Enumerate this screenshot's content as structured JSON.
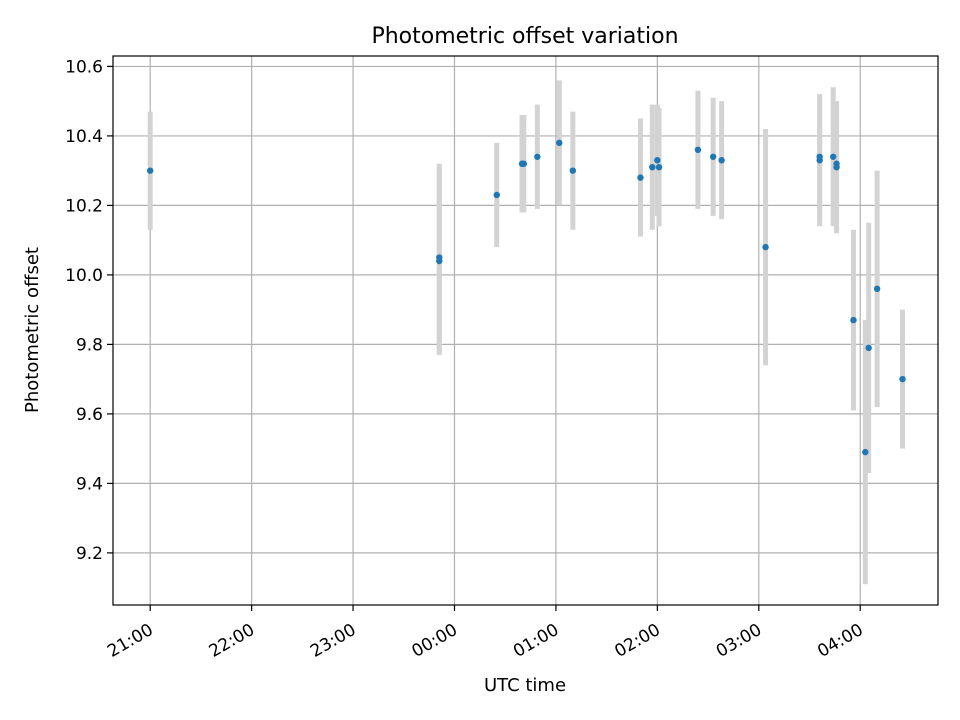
{
  "chart_data": {
    "type": "scatter",
    "title": "Photometric offset variation",
    "xlabel": "UTC time",
    "ylabel": "Photometric offset",
    "xlim": [
      "20:38",
      "04:46"
    ],
    "ylim": [
      9.05,
      10.63
    ],
    "grid": true,
    "legend": "none",
    "x_ticks": [
      "21:00",
      "22:00",
      "23:00",
      "00:00",
      "01:00",
      "02:00",
      "03:00",
      "04:00"
    ],
    "y_ticks": [
      9.2,
      9.4,
      9.6,
      9.8,
      10.0,
      10.2,
      10.4,
      10.6
    ],
    "y_tick_labels": [
      "9.2",
      "9.4",
      "9.6",
      "9.8",
      "10.0",
      "10.2",
      "10.4",
      "10.6"
    ],
    "point_color": "#1f77b4",
    "errorbar_color": "#d3d3d3",
    "points": [
      {
        "x": "21:00",
        "y": 10.3,
        "yerr": 0.17
      },
      {
        "x": "23:51",
        "y": 10.04,
        "yerr": 0.27
      },
      {
        "x": "23:51",
        "y": 10.05,
        "yerr": 0.27
      },
      {
        "x": "00:25",
        "y": 10.23,
        "yerr": 0.15
      },
      {
        "x": "00:40",
        "y": 10.32,
        "yerr": 0.14
      },
      {
        "x": "00:40",
        "y": 10.32,
        "yerr": 0.14
      },
      {
        "x": "00:41",
        "y": 10.32,
        "yerr": 0.14
      },
      {
        "x": "00:49",
        "y": 10.34,
        "yerr": 0.15
      },
      {
        "x": "01:02",
        "y": 10.38,
        "yerr": 0.18
      },
      {
        "x": "01:10",
        "y": 10.3,
        "yerr": 0.17
      },
      {
        "x": "01:50",
        "y": 10.28,
        "yerr": 0.17
      },
      {
        "x": "01:57",
        "y": 10.31,
        "yerr": 0.18
      },
      {
        "x": "02:00",
        "y": 10.33,
        "yerr": 0.16
      },
      {
        "x": "02:01",
        "y": 10.31,
        "yerr": 0.17
      },
      {
        "x": "02:24",
        "y": 10.36,
        "yerr": 0.17
      },
      {
        "x": "02:33",
        "y": 10.34,
        "yerr": 0.17
      },
      {
        "x": "02:38",
        "y": 10.33,
        "yerr": 0.17
      },
      {
        "x": "03:04",
        "y": 10.08,
        "yerr": 0.34
      },
      {
        "x": "03:36",
        "y": 10.33,
        "yerr": 0.19
      },
      {
        "x": "03:36",
        "y": 10.34,
        "yerr": 0.18
      },
      {
        "x": "03:44",
        "y": 10.34,
        "yerr": 0.2
      },
      {
        "x": "03:46",
        "y": 10.31,
        "yerr": 0.19
      },
      {
        "x": "03:46",
        "y": 10.32,
        "yerr": 0.18
      },
      {
        "x": "03:56",
        "y": 9.87,
        "yerr": 0.26
      },
      {
        "x": "04:03",
        "y": 9.49,
        "yerr": 0.38
      },
      {
        "x": "04:05",
        "y": 9.79,
        "yerr": 0.36
      },
      {
        "x": "04:10",
        "y": 9.96,
        "yerr": 0.34
      },
      {
        "x": "04:25",
        "y": 9.7,
        "yerr": 0.2
      }
    ]
  }
}
